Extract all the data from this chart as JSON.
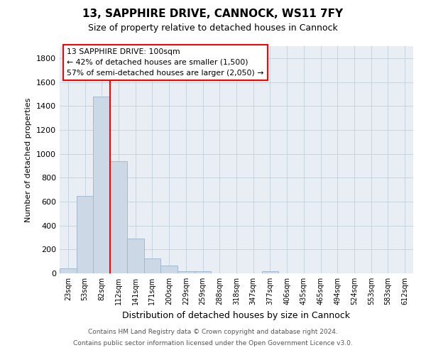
{
  "title": "13, SAPPHIRE DRIVE, CANNOCK, WS11 7FY",
  "subtitle": "Size of property relative to detached houses in Cannock",
  "xlabel": "Distribution of detached houses by size in Cannock",
  "ylabel": "Number of detached properties",
  "bar_color": "#cdd8e6",
  "bar_edge_color": "#9db4cc",
  "annotation_box_text": "13 SAPPHIRE DRIVE: 100sqm\n← 42% of detached houses are smaller (1,500)\n57% of semi-detached houses are larger (2,050) →",
  "footer_line1": "Contains HM Land Registry data © Crown copyright and database right 2024.",
  "footer_line2": "Contains public sector information licensed under the Open Government Licence v3.0.",
  "categories": [
    "23sqm",
    "53sqm",
    "82sqm",
    "112sqm",
    "141sqm",
    "171sqm",
    "200sqm",
    "229sqm",
    "259sqm",
    "288sqm",
    "318sqm",
    "347sqm",
    "377sqm",
    "406sqm",
    "435sqm",
    "465sqm",
    "494sqm",
    "524sqm",
    "553sqm",
    "583sqm",
    "612sqm"
  ],
  "values": [
    40,
    650,
    1480,
    940,
    290,
    125,
    65,
    20,
    15,
    0,
    0,
    0,
    15,
    0,
    0,
    0,
    0,
    0,
    0,
    0,
    0
  ],
  "ylim": [
    0,
    1900
  ],
  "yticks": [
    0,
    200,
    400,
    600,
    800,
    1000,
    1200,
    1400,
    1600,
    1800
  ],
  "red_line_bin_index": 2,
  "bg_color": "#e8eef4",
  "grid_color": "#c8d4de"
}
